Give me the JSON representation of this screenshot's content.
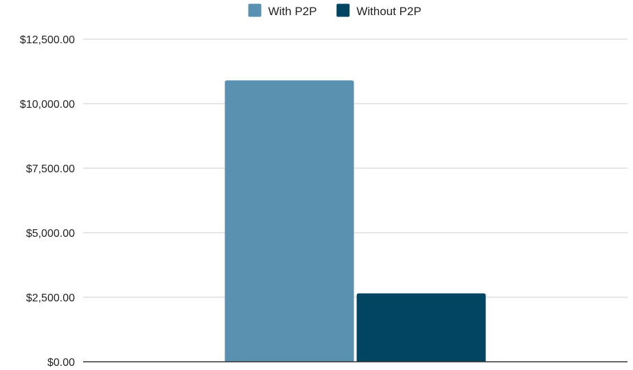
{
  "chart_data": {
    "type": "bar",
    "categories": [
      ""
    ],
    "series": [
      {
        "name": "With P2P",
        "values": [
          10900
        ],
        "color": "#5a91b0"
      },
      {
        "name": "Without P2P",
        "values": [
          2650
        ],
        "color": "#024563"
      }
    ],
    "title": "",
    "xlabel": "",
    "ylabel": "",
    "ylim": [
      0,
      12500
    ],
    "yticks": [
      "$0.00",
      "$2,500.00",
      "$5,000.00",
      "$7,500.00",
      "$10,000.00",
      "$12,500.00"
    ],
    "ytick_values": [
      0,
      2500,
      5000,
      7500,
      10000,
      12500
    ],
    "grid": true,
    "legend_position": "top-center",
    "colors": {
      "grid": "#cccccc",
      "axis": "#333333"
    }
  }
}
